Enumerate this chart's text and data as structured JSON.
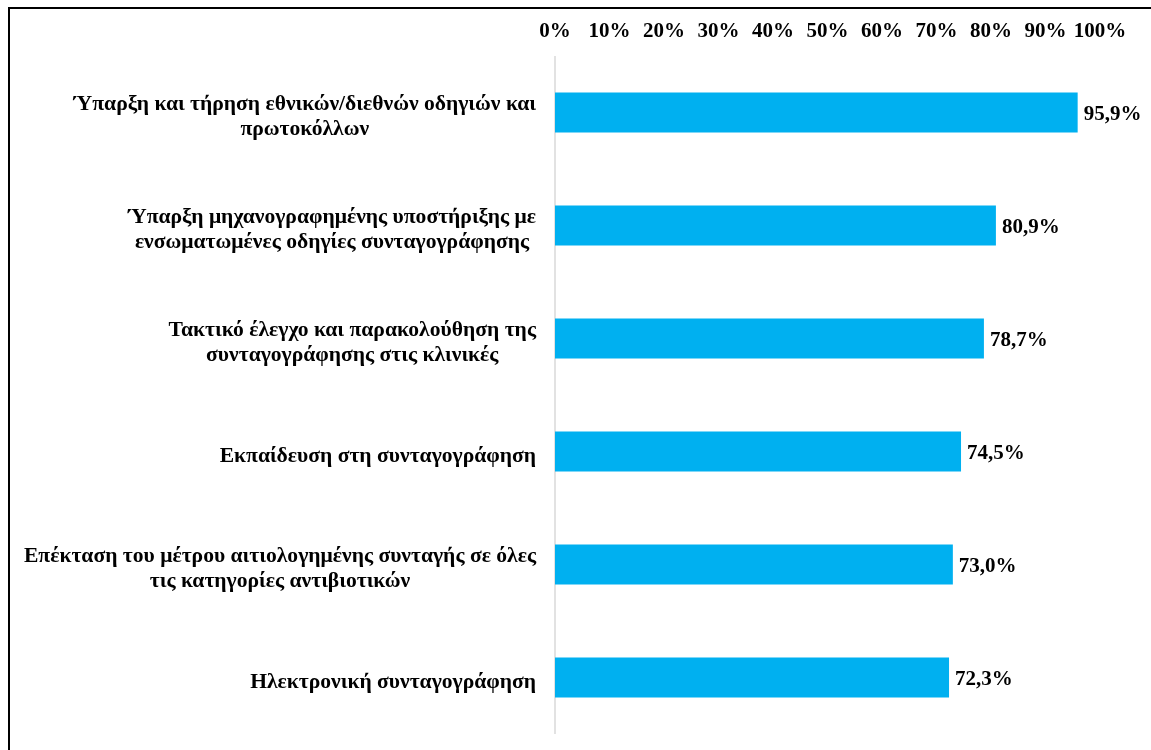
{
  "chart_data": {
    "type": "bar",
    "orientation": "horizontal",
    "categories": [
      "Ύπαρξη και τήρηση εθνικών/διεθνών οδηγιών και πρωτοκόλλων",
      "Ύπαρξη μηχανογραφημένης υποστήριξης με ενσωματωμένες οδηγίες συνταγογράφησης",
      "Τακτικό έλεγχο και παρακολούθηση της συνταγογράφησης στις κλινικές",
      "Εκπαίδευση στη συνταγογράφηση",
      "Επέκταση του μέτρου αιτιολογημένης συνταγής σε όλες τις κατηγορίες αντιβιοτικών",
      "Ηλεκτρονική συνταγογράφηση"
    ],
    "values": [
      95.9,
      80.9,
      78.7,
      74.5,
      73.0,
      72.3
    ],
    "value_labels": [
      "95,9%",
      "80,9%",
      "78,7%",
      "74,5%",
      "73,0%",
      "72,3%"
    ],
    "color": "#00b0f0",
    "xlim": [
      0,
      100
    ],
    "xticks": [
      {
        "value": 0,
        "label": "0%"
      },
      {
        "value": 10,
        "label": "10%"
      },
      {
        "value": 20,
        "label": "20%"
      },
      {
        "value": 30,
        "label": "30%"
      },
      {
        "value": 40,
        "label": "40%"
      },
      {
        "value": 50,
        "label": "50%"
      },
      {
        "value": 60,
        "label": "60%"
      },
      {
        "value": 70,
        "label": "70%"
      },
      {
        "value": 80,
        "label": "80%"
      },
      {
        "value": 90,
        "label": "90%"
      },
      {
        "value": 100,
        "label": "100%"
      }
    ]
  }
}
